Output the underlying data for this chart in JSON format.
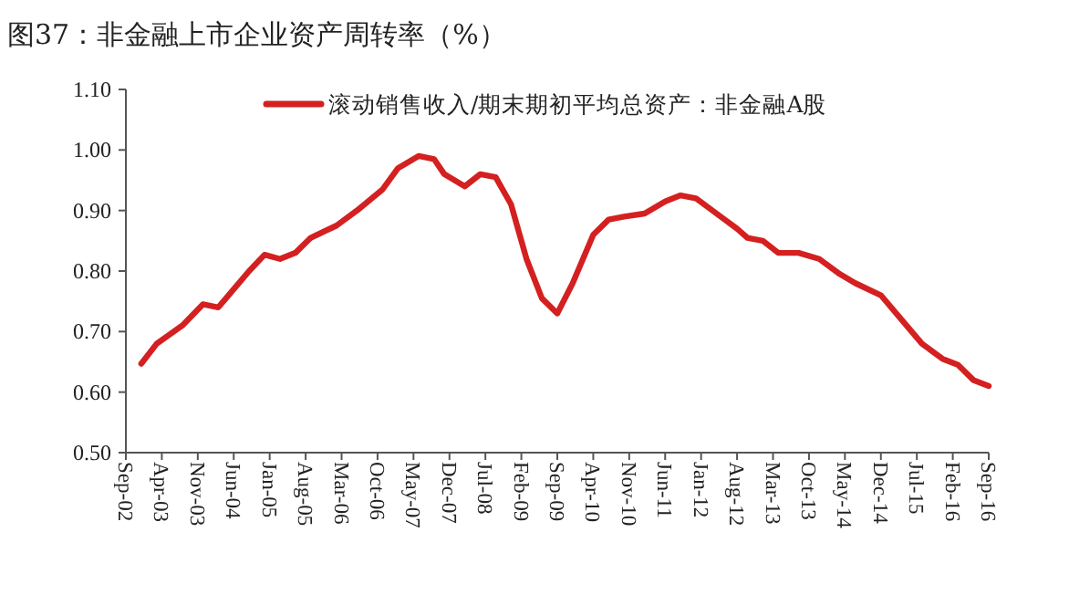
{
  "chart_data": {
    "type": "line",
    "title": "图37：非金融上市企业资产周转率（%）",
    "x": [
      "2002-12",
      "2003-03",
      "2003-08",
      "2003-12",
      "2004-03",
      "2004-06",
      "2004-09",
      "2004-12",
      "2005-03",
      "2005-06",
      "2005-09",
      "2006-02",
      "2006-06",
      "2006-11",
      "2007-02",
      "2007-06",
      "2007-09",
      "2007-11",
      "2008-03",
      "2008-06",
      "2008-09",
      "2008-12",
      "2009-03",
      "2009-06",
      "2009-09",
      "2009-12",
      "2010-04",
      "2010-07",
      "2010-10",
      "2011-02",
      "2011-06",
      "2011-09",
      "2011-12",
      "2012-04",
      "2012-08",
      "2012-10",
      "2013-01",
      "2013-04",
      "2013-08",
      "2013-12",
      "2014-04",
      "2014-07",
      "2014-12",
      "2015-04",
      "2015-08",
      "2015-12",
      "2016-03",
      "2016-06",
      "2016-09"
    ],
    "series": [
      {
        "name": "滚动销售收入/期末期初平均总资产：非金融A股",
        "color": "#d42020",
        "values": [
          0.647,
          0.68,
          0.71,
          0.745,
          0.74,
          0.77,
          0.8,
          0.827,
          0.82,
          0.83,
          0.855,
          0.875,
          0.9,
          0.935,
          0.97,
          0.99,
          0.985,
          0.96,
          0.94,
          0.96,
          0.955,
          0.91,
          0.82,
          0.755,
          0.73,
          0.78,
          0.86,
          0.885,
          0.89,
          0.895,
          0.915,
          0.925,
          0.92,
          0.895,
          0.87,
          0.855,
          0.85,
          0.83,
          0.83,
          0.82,
          0.795,
          0.78,
          0.76,
          0.72,
          0.68,
          0.655,
          0.645,
          0.62,
          0.61
        ]
      }
    ],
    "xlim": [
      "2002-09",
      "2016-09"
    ],
    "xticks": [
      {
        "value": "2002-09",
        "label": "Sep-02"
      },
      {
        "value": "2003-04",
        "label": "Apr-03"
      },
      {
        "value": "2003-11",
        "label": "Nov-03"
      },
      {
        "value": "2004-06",
        "label": "Jun-04"
      },
      {
        "value": "2005-01",
        "label": "Jan-05"
      },
      {
        "value": "2005-08",
        "label": "Aug-05"
      },
      {
        "value": "2006-03",
        "label": "Mar-06"
      },
      {
        "value": "2006-10",
        "label": "Oct-06"
      },
      {
        "value": "2007-05",
        "label": "May-07"
      },
      {
        "value": "2007-12",
        "label": "Dec-07"
      },
      {
        "value": "2008-07",
        "label": "Jul-08"
      },
      {
        "value": "2009-02",
        "label": "Feb-09"
      },
      {
        "value": "2009-09",
        "label": "Sep-09"
      },
      {
        "value": "2010-04",
        "label": "Apr-10"
      },
      {
        "value": "2010-11",
        "label": "Nov-10"
      },
      {
        "value": "2011-06",
        "label": "Jun-11"
      },
      {
        "value": "2012-01",
        "label": "Jan-12"
      },
      {
        "value": "2012-08",
        "label": "Aug-12"
      },
      {
        "value": "2013-03",
        "label": "Mar-13"
      },
      {
        "value": "2013-10",
        "label": "Oct-13"
      },
      {
        "value": "2014-05",
        "label": "May-14"
      },
      {
        "value": "2014-12",
        "label": "Dec-14"
      },
      {
        "value": "2015-07",
        "label": "Jul-15"
      },
      {
        "value": "2016-02",
        "label": "Feb-16"
      },
      {
        "value": "2016-09",
        "label": "Sep-16"
      }
    ],
    "ylim": [
      0.5,
      1.1
    ],
    "yticks": [
      {
        "value": 0.5,
        "label": "0.50"
      },
      {
        "value": 0.6,
        "label": "0.60"
      },
      {
        "value": 0.7,
        "label": "0.70"
      },
      {
        "value": 0.8,
        "label": "0.80"
      },
      {
        "value": 0.9,
        "label": "0.90"
      },
      {
        "value": 1.0,
        "label": "1.00"
      },
      {
        "value": 1.1,
        "label": "1.10"
      }
    ],
    "legend": "top",
    "grid": false,
    "marker": "none",
    "line_style": "solid"
  }
}
